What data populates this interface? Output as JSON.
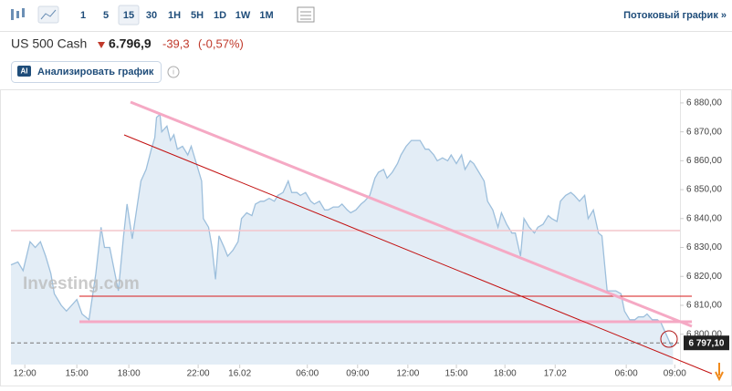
{
  "toolbar": {
    "intervals": [
      "1",
      "5",
      "15",
      "30",
      "1H",
      "5H",
      "1D",
      "1W",
      "1M"
    ],
    "selected": "15",
    "streaming_link": "Потоковый график »"
  },
  "quote": {
    "name": "US 500 Cash",
    "price": "6.796,9",
    "change": "-39,3",
    "change_pct": "(-0,57%)"
  },
  "ai_button": {
    "badge": "AI",
    "label": "Анализировать график"
  },
  "watermark": "Investing.com",
  "chart_data": {
    "type": "area",
    "color": "#9dbfdc",
    "fill": "#e3edf6",
    "x": [
      -0.8,
      -0.4,
      -0.1,
      0.3,
      0.6,
      0.9,
      1.2,
      1.5,
      1.7,
      2.1,
      2.4,
      2.7,
      3.0,
      3.3,
      3.7,
      4.1,
      4.4,
      4.6,
      4.9,
      5.2,
      5.4,
      5.7,
      5.9,
      6.2,
      6.5,
      6.7,
      7.0,
      7.3,
      7.5,
      7.6,
      7.8,
      7.9,
      8.2,
      8.4,
      8.6,
      8.8,
      9.1,
      9.4,
      9.6,
      9.9,
      10.2,
      10.3,
      10.6,
      10.8,
      11.0,
      11.2,
      11.5,
      11.7,
      12.0,
      12.3,
      12.5,
      12.8,
      13.1,
      13.3,
      13.6,
      13.8,
      14.1,
      14.4,
      14.6,
      14.9,
      15.2,
      15.4,
      15.7,
      15.9,
      16.2,
      16.5,
      16.7,
      17.0,
      17.3,
      17.5,
      17.8,
      18.1,
      18.3,
      18.6,
      18.8,
      19.1,
      19.4,
      19.6,
      19.9,
      20.2,
      20.4,
      20.7,
      20.9,
      21.2,
      21.5,
      21.7,
      22.0,
      22.3,
      22.5,
      22.8,
      23.1,
      23.3,
      23.6,
      23.8,
      24.1,
      24.4,
      24.6,
      24.9,
      25.2,
      25.4,
      25.7,
      25.9,
      26.2,
      26.5,
      26.7,
      27.0,
      27.3,
      27.5,
      27.8,
      28.1,
      28.3,
      28.6,
      28.8,
      29.1,
      29.4,
      29.6,
      29.9,
      30.2,
      30.4,
      30.7,
      30.9,
      31.2,
      31.5,
      31.7,
      32.0,
      32.3,
      32.5,
      32.8,
      33.1,
      33.3,
      33.6,
      33.8,
      34.1,
      34.4,
      34.6,
      34.9,
      35.2,
      35.4,
      35.7,
      35.9,
      36.2,
      36.5,
      36.7,
      37.0,
      37.3,
      37.4
    ],
    "values": [
      6824,
      6825,
      6822,
      6832,
      6830,
      6832,
      6827,
      6821,
      6814,
      6810,
      6808,
      6810,
      6812,
      6807,
      6805,
      6821,
      6837,
      6830,
      6830,
      6821,
      6815,
      6834,
      6845,
      6833,
      6845,
      6853,
      6857,
      6864,
      6868,
      6875,
      6876,
      6870,
      6872,
      6867,
      6869,
      6864,
      6865,
      6862,
      6865,
      6859,
      6853,
      6840,
      6837,
      6830,
      6819,
      6834,
      6830,
      6827,
      6829,
      6832,
      6840,
      6842,
      6841,
      6845,
      6846,
      6846,
      6847,
      6846,
      6848,
      6849,
      6853,
      6849,
      6849,
      6848,
      6849,
      6846,
      6845,
      6846,
      6843,
      6843,
      6844,
      6844,
      6845,
      6843,
      6842,
      6843,
      6845,
      6846,
      6848,
      6854,
      6856,
      6857,
      6854,
      6856,
      6859,
      6862,
      6865,
      6867,
      6867,
      6867,
      6864,
      6864,
      6862,
      6860,
      6861,
      6860,
      6862,
      6859,
      6862,
      6857,
      6860,
      6859,
      6856,
      6853,
      6846,
      6843,
      6837,
      6842,
      6838,
      6835,
      6835,
      6827,
      6840,
      6837,
      6835,
      6837,
      6838,
      6841,
      6840,
      6839,
      6846,
      6848,
      6849,
      6848,
      6846,
      6848,
      6840,
      6843,
      6835,
      6834,
      6815,
      6815,
      6815,
      6814,
      6808,
      6805,
      6805,
      6806,
      6806,
      6807,
      6805,
      6805,
      6804,
      6800,
      6796,
      6797
    ],
    "xlim": [
      -0.8,
      37.8
    ],
    "ylim": [
      6789.5,
      6884.7
    ],
    "xticks": [
      {
        "value": 0,
        "label": "12:00"
      },
      {
        "value": 3,
        "label": "15:00"
      },
      {
        "value": 6,
        "label": "18:00"
      },
      {
        "value": 10,
        "label": "22:00"
      },
      {
        "value": 12.4,
        "label": "16.02"
      },
      {
        "value": 16.3,
        "label": "06:00"
      },
      {
        "value": 19.2,
        "label": "09:00"
      },
      {
        "value": 22.1,
        "label": "12:00"
      },
      {
        "value": 24.9,
        "label": "15:00"
      },
      {
        "value": 27.7,
        "label": "18:00"
      },
      {
        "value": 30.6,
        "label": "17.02"
      },
      {
        "value": 34.7,
        "label": "06:00"
      },
      {
        "value": 37.5,
        "label": "09:00"
      }
    ],
    "yticks": [
      {
        "value": 6800,
        "label": "6 800,00"
      },
      {
        "value": 6810,
        "label": "6 810,00"
      },
      {
        "value": 6820,
        "label": "6 820,00"
      },
      {
        "value": 6830,
        "label": "6 830,00"
      },
      {
        "value": 6840,
        "label": "6 840,00"
      },
      {
        "value": 6850,
        "label": "6 850,00"
      },
      {
        "value": 6860,
        "label": "6 860,00"
      },
      {
        "value": 6870,
        "label": "6 870,00"
      },
      {
        "value": 6880,
        "label": "6 880,00"
      }
    ],
    "last_price_label": "6 797,10"
  }
}
